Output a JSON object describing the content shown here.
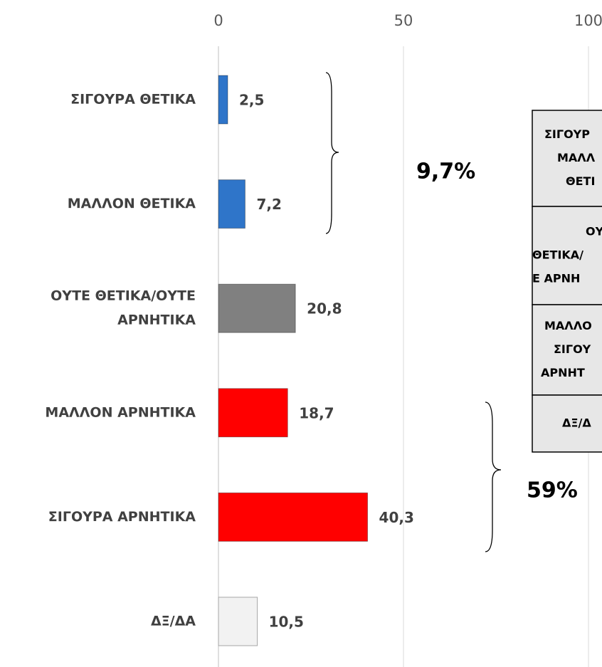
{
  "chart_data": {
    "type": "barh",
    "categories": [
      "ΣΙΓΟΥΡΑ ΘΕΤΙΚΑ",
      "ΜΑΛΛΟΝ ΘΕΤΙΚΑ",
      [
        "ΟΥΤΕ ΘΕΤΙΚΑ/ΟΥΤΕ",
        "ΑΡΝΗΤΙΚΑ"
      ],
      "ΜΑΛΛΟΝ ΑΡΝΗΤΙΚΑ",
      "ΣΙΓΟΥΡΑ ΑΡΝΗΤΙΚΑ",
      "ΔΞ/ΔΑ"
    ],
    "values": [
      2.5,
      7.2,
      20.8,
      18.7,
      40.3,
      10.5
    ],
    "value_labels": [
      "2,5",
      "7,2",
      "20,8",
      "18,7",
      "40,3",
      "10,5"
    ],
    "colors": [
      "#2f75c9",
      "#2f75c9",
      "#808080",
      "#ff0000",
      "#ff0000",
      "#f2f2f2"
    ],
    "xlim": [
      0,
      100
    ],
    "xticks": [
      0,
      50,
      100
    ],
    "grid": true,
    "annotations": [
      "9,7%",
      "59%"
    ],
    "table": [
      [
        "ΣΙΓΟΥΡ",
        "ΜΑΛΛ",
        "ΘΕΤΙ"
      ],
      [
        "ΟΥΤ",
        "ΘΕΤΙΚΑ/",
        "Ε ΑΡΝΗ"
      ],
      [
        "ΜΑΛΛΟ",
        "ΣΙΓΟΥ",
        "ΑΡΝΗΤ"
      ],
      [
        "ΔΞ/Δ"
      ]
    ]
  }
}
